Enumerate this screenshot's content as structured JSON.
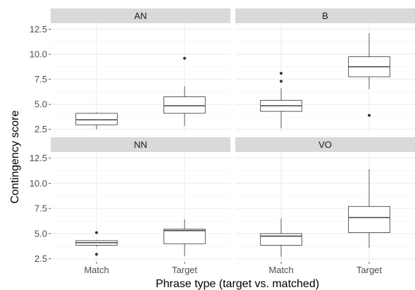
{
  "chart_data": {
    "type": "boxplot",
    "xlabel": "Phrase type (target vs. matched)",
    "ylabel": "Contingency score",
    "categories": [
      "Match",
      "Target"
    ],
    "y_ticks": [
      2.5,
      5.0,
      7.5,
      10.0,
      12.5
    ],
    "y_tick_labels": [
      "2.5",
      "5.0",
      "7.5",
      "10.0",
      "12.5"
    ],
    "ylim": [
      2.2,
      13.1
    ],
    "grid": true,
    "panels": [
      {
        "label": "AN",
        "boxes": [
          {
            "category": "Match",
            "whisker_low": 2.5,
            "q1": 2.95,
            "median": 3.45,
            "q3": 4.1,
            "whisker_high": 4.2,
            "outliers": []
          },
          {
            "category": "Target",
            "whisker_low": 2.85,
            "q1": 4.1,
            "median": 4.85,
            "q3": 5.75,
            "whisker_high": 6.8,
            "outliers": [
              9.6
            ]
          }
        ]
      },
      {
        "label": "B",
        "boxes": [
          {
            "category": "Match",
            "whisker_low": 2.6,
            "q1": 4.3,
            "median": 4.85,
            "q3": 5.4,
            "whisker_high": 6.6,
            "outliers": [
              7.3,
              8.1
            ]
          },
          {
            "category": "Target",
            "whisker_low": 6.5,
            "q1": 7.75,
            "median": 8.75,
            "q3": 9.75,
            "whisker_high": 12.1,
            "outliers": [
              3.9
            ]
          }
        ]
      },
      {
        "label": "NN",
        "boxes": [
          {
            "category": "Match",
            "whisker_low": 3.7,
            "q1": 3.85,
            "median": 4.1,
            "q3": 4.3,
            "whisker_high": 4.35,
            "outliers": [
              5.1,
              2.95
            ]
          },
          {
            "category": "Target",
            "whisker_low": 2.8,
            "q1": 4.0,
            "median": 5.3,
            "q3": 5.45,
            "whisker_high": 6.4,
            "outliers": []
          }
        ]
      },
      {
        "label": "VO",
        "boxes": [
          {
            "category": "Match",
            "whisker_low": 2.7,
            "q1": 3.85,
            "median": 4.75,
            "q3": 5.0,
            "whisker_high": 6.5,
            "outliers": []
          },
          {
            "category": "Target",
            "whisker_low": 3.6,
            "q1": 5.1,
            "median": 6.6,
            "q3": 7.7,
            "whisker_high": 11.4,
            "outliers": []
          }
        ]
      }
    ]
  }
}
